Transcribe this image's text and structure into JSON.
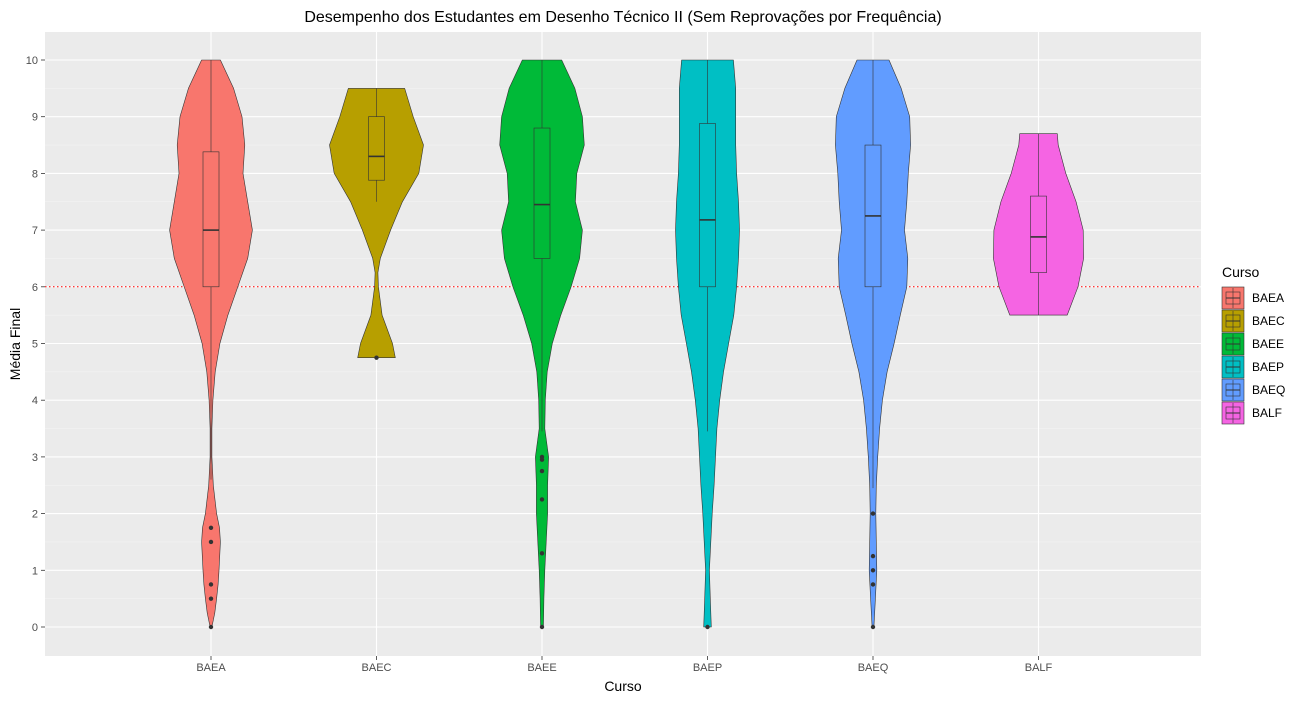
{
  "chart_data": {
    "type": "violin",
    "title": "Desempenho dos Estudantes em Desenho Técnico II (Sem Reprovações por Frequência)",
    "xlabel": "Curso",
    "ylabel": "Média Final",
    "categories": [
      "BAEA",
      "BAEC",
      "BAEE",
      "BAEP",
      "BAEQ",
      "BALF"
    ],
    "ylim": [
      -0.5,
      10.5
    ],
    "yticks": [
      0,
      1,
      2,
      3,
      4,
      5,
      6,
      7,
      8,
      9,
      10
    ],
    "reference_line": {
      "y": 6,
      "color": "#ff0000",
      "style": "dotted"
    },
    "grid": true,
    "legend": {
      "title": "Curso",
      "position": "right",
      "entries": [
        "BAEA",
        "BAEC",
        "BAEE",
        "BAEP",
        "BAEQ",
        "BALF"
      ]
    },
    "series": [
      {
        "name": "BAEA",
        "color": "#f8766d",
        "min": 0,
        "max": 10,
        "box": {
          "q1": 6.0,
          "median": 7.0,
          "q3": 8.38,
          "whisker_low": 2.6,
          "whisker_high": 10
        },
        "outliers": [
          1.75,
          1.5,
          0.75,
          0.5,
          0
        ],
        "density": [
          [
            0,
            0.02
          ],
          [
            0.25,
            0.08
          ],
          [
            0.5,
            0.12
          ],
          [
            0.75,
            0.15
          ],
          [
            1,
            0.17
          ],
          [
            1.5,
            0.2
          ],
          [
            1.75,
            0.18
          ],
          [
            2,
            0.12
          ],
          [
            2.5,
            0.05
          ],
          [
            3,
            0.02
          ],
          [
            3.5,
            0.02
          ],
          [
            4,
            0.04
          ],
          [
            4.5,
            0.09
          ],
          [
            5,
            0.19
          ],
          [
            5.5,
            0.36
          ],
          [
            6,
            0.57
          ],
          [
            6.5,
            0.78
          ],
          [
            7,
            0.88
          ],
          [
            7.5,
            0.78
          ],
          [
            8,
            0.68
          ],
          [
            8.5,
            0.72
          ],
          [
            9,
            0.66
          ],
          [
            9.5,
            0.48
          ],
          [
            10,
            0.2
          ]
        ]
      },
      {
        "name": "BAEC",
        "color": "#b79f00",
        "min": 4.75,
        "max": 9.5,
        "box": {
          "q1": 7.88,
          "median": 8.3,
          "q3": 9.0,
          "whisker_low": 7.5,
          "whisker_high": 9.5
        },
        "outliers": [
          4.75
        ],
        "density": [
          [
            4.75,
            0.4
          ],
          [
            5,
            0.34
          ],
          [
            5.5,
            0.12
          ],
          [
            6,
            0.04
          ],
          [
            6.25,
            0.03
          ],
          [
            6.5,
            0.08
          ],
          [
            7,
            0.3
          ],
          [
            7.5,
            0.55
          ],
          [
            8,
            0.9
          ],
          [
            8.5,
            1.0
          ],
          [
            9,
            0.78
          ],
          [
            9.5,
            0.6
          ]
        ]
      },
      {
        "name": "BAEE",
        "color": "#00ba38",
        "min": 0,
        "max": 10,
        "box": {
          "q1": 6.5,
          "median": 7.45,
          "q3": 8.8,
          "whisker_low": 3.45,
          "whisker_high": 10
        },
        "outliers": [
          3.0,
          2.95,
          2.75,
          2.25,
          1.3,
          0
        ],
        "density": [
          [
            0,
            0.03
          ],
          [
            0.5,
            0.04
          ],
          [
            1,
            0.06
          ],
          [
            1.5,
            0.09
          ],
          [
            2,
            0.12
          ],
          [
            2.5,
            0.12
          ],
          [
            3,
            0.14
          ],
          [
            3.5,
            0.06
          ],
          [
            4,
            0.07
          ],
          [
            4.5,
            0.11
          ],
          [
            5,
            0.22
          ],
          [
            5.5,
            0.4
          ],
          [
            6,
            0.62
          ],
          [
            6.5,
            0.8
          ],
          [
            7,
            0.86
          ],
          [
            7.5,
            0.71
          ],
          [
            8,
            0.74
          ],
          [
            8.5,
            0.9
          ],
          [
            9,
            0.86
          ],
          [
            9.5,
            0.7
          ],
          [
            10,
            0.42
          ]
        ]
      },
      {
        "name": "BAEP",
        "color": "#00bfc4",
        "min": 0,
        "max": 10,
        "box": {
          "q1": 6.0,
          "median": 7.18,
          "q3": 8.88,
          "whisker_low": 3.45,
          "whisker_high": 10
        },
        "outliers": [
          0
        ],
        "density": [
          [
            0,
            0.08
          ],
          [
            0.5,
            0.06
          ],
          [
            1,
            0.04
          ],
          [
            1.5,
            0.07
          ],
          [
            2,
            0.1
          ],
          [
            2.5,
            0.14
          ],
          [
            3,
            0.17
          ],
          [
            3.5,
            0.2
          ],
          [
            4,
            0.26
          ],
          [
            4.5,
            0.34
          ],
          [
            5,
            0.45
          ],
          [
            5.5,
            0.56
          ],
          [
            6,
            0.62
          ],
          [
            6.5,
            0.66
          ],
          [
            7,
            0.68
          ],
          [
            7.5,
            0.66
          ],
          [
            8,
            0.62
          ],
          [
            8.5,
            0.6
          ],
          [
            9,
            0.6
          ],
          [
            9.5,
            0.6
          ],
          [
            10,
            0.55
          ]
        ]
      },
      {
        "name": "BAEQ",
        "color": "#619cff",
        "min": 0,
        "max": 10,
        "box": {
          "q1": 6.0,
          "median": 7.25,
          "q3": 8.5,
          "whisker_low": 2.45,
          "whisker_high": 10
        },
        "outliers": [
          2.0,
          1.25,
          1.0,
          0.75,
          0
        ],
        "density": [
          [
            0,
            0.02
          ],
          [
            0.5,
            0.05
          ],
          [
            1,
            0.08
          ],
          [
            1.5,
            0.07
          ],
          [
            2,
            0.06
          ],
          [
            2.5,
            0.07
          ],
          [
            3,
            0.1
          ],
          [
            3.5,
            0.14
          ],
          [
            4,
            0.2
          ],
          [
            4.5,
            0.3
          ],
          [
            5,
            0.45
          ],
          [
            5.5,
            0.58
          ],
          [
            6,
            0.72
          ],
          [
            6.5,
            0.74
          ],
          [
            7,
            0.67
          ],
          [
            7.5,
            0.72
          ],
          [
            8,
            0.75
          ],
          [
            8.5,
            0.8
          ],
          [
            9,
            0.78
          ],
          [
            9.5,
            0.6
          ],
          [
            10,
            0.34
          ]
        ]
      },
      {
        "name": "BALF",
        "color": "#f564e3",
        "min": 5.5,
        "max": 8.7,
        "box": {
          "q1": 6.25,
          "median": 6.88,
          "q3": 7.6,
          "whisker_low": 5.5,
          "whisker_high": 8.7
        },
        "outliers": [],
        "density": [
          [
            5.5,
            0.61
          ],
          [
            6,
            0.84
          ],
          [
            6.5,
            0.96
          ],
          [
            7,
            0.95
          ],
          [
            7.5,
            0.8
          ],
          [
            8,
            0.58
          ],
          [
            8.5,
            0.42
          ],
          [
            8.7,
            0.4
          ]
        ]
      }
    ]
  }
}
